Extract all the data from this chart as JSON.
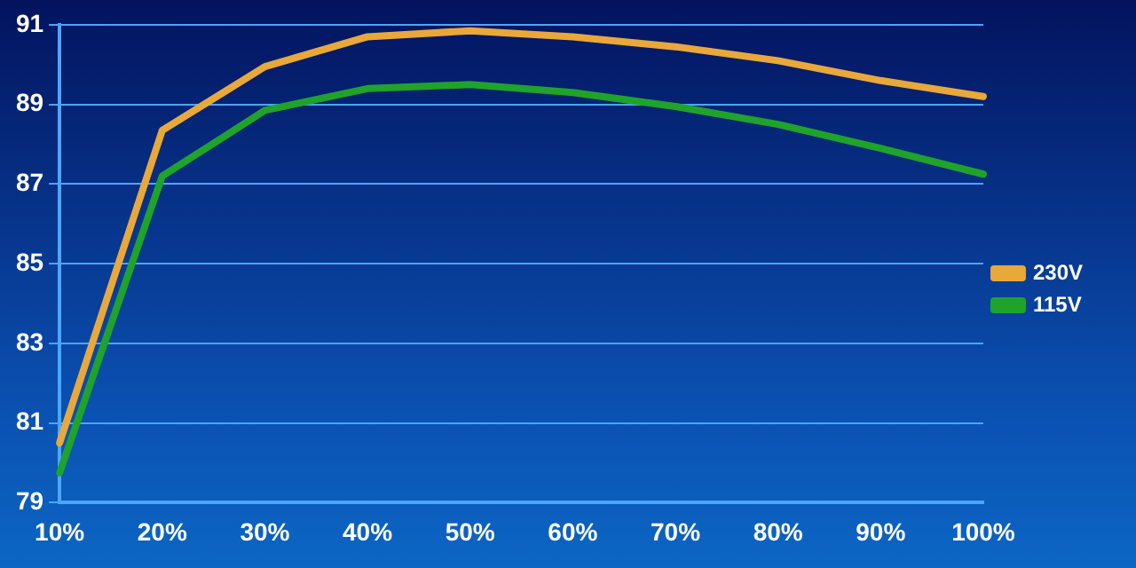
{
  "chart_data": {
    "type": "line",
    "categories": [
      "10%",
      "20%",
      "30%",
      "40%",
      "50%",
      "60%",
      "70%",
      "80%",
      "90%",
      "100%"
    ],
    "series": [
      {
        "name": "230V",
        "color": "#e8a83a",
        "values": [
          80.5,
          88.35,
          89.95,
          90.7,
          90.85,
          90.7,
          90.45,
          90.1,
          89.6,
          89.2
        ]
      },
      {
        "name": "115V",
        "color": "#1fa32a",
        "values": [
          79.75,
          87.2,
          88.85,
          89.4,
          89.5,
          89.3,
          88.95,
          88.5,
          87.9,
          87.25
        ]
      }
    ],
    "ylim": [
      79,
      91
    ],
    "yticks": [
      79,
      81,
      83,
      85,
      87,
      89,
      91
    ],
    "grid": "y",
    "legend": "right",
    "marker": "none",
    "line_style": "solid"
  }
}
